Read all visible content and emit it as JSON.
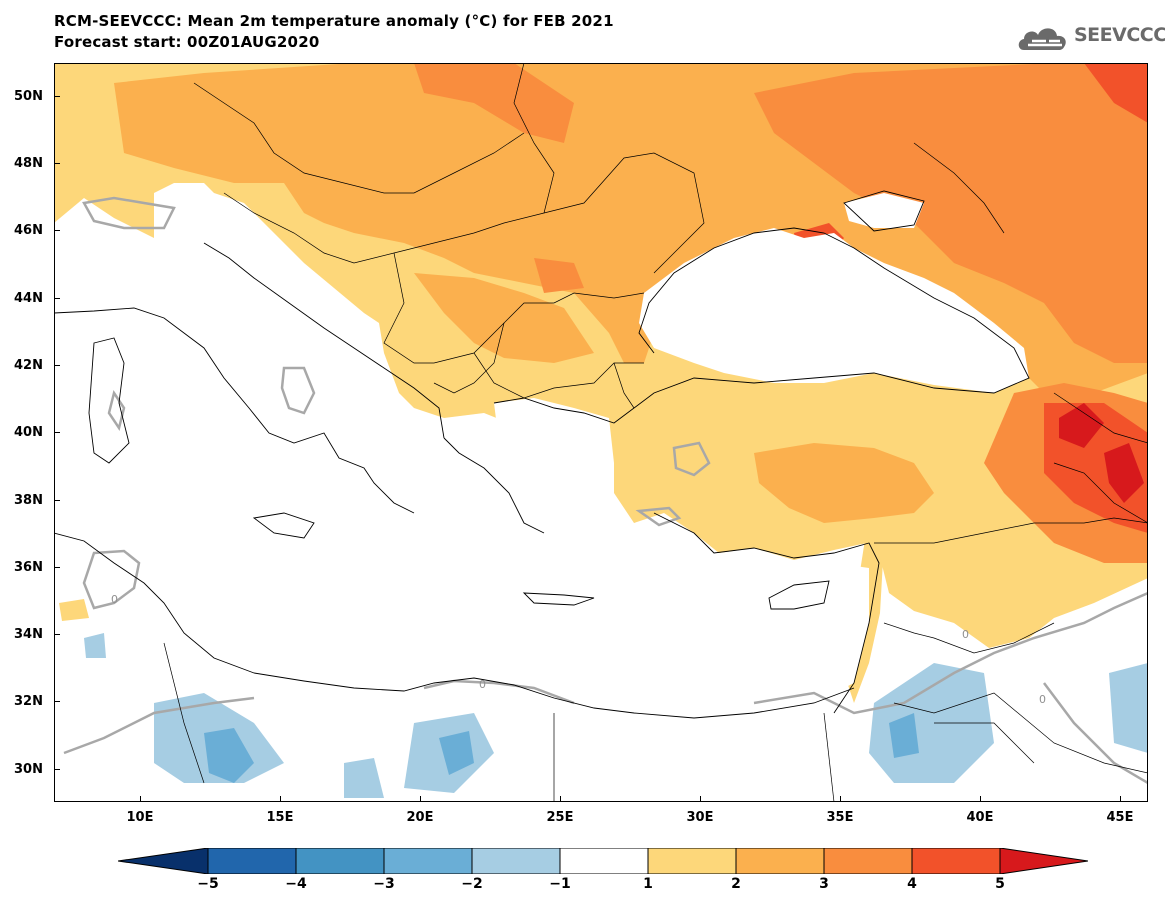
{
  "header": {
    "title_line1": "RCM-SEEVCCC: Mean 2m temperature anomaly (°C) for FEB 2021",
    "title_line2": "Forecast start: 00Z01AUG2020"
  },
  "logo": {
    "text": "SEEVCCC",
    "icon": "cloud-logo-icon"
  },
  "axes": {
    "lat_labels": [
      "50N",
      "48N",
      "46N",
      "44N",
      "42N",
      "40N",
      "38N",
      "36N",
      "34N",
      "32N",
      "30N"
    ],
    "lon_labels": [
      "10E",
      "15E",
      "20E",
      "25E",
      "30E",
      "35E",
      "40E",
      "45E"
    ]
  },
  "contour_label": "0",
  "colorbar": {
    "tick_labels": [
      "−5",
      "−4",
      "−3",
      "−2",
      "−1",
      "1",
      "2",
      "3",
      "4",
      "5"
    ],
    "colors": [
      "#08306b",
      "#2166ac",
      "#4393c3",
      "#6aaed6",
      "#a6cde3",
      "#ffffff",
      "#fdd77a",
      "#fbb04e",
      "#f98d3e",
      "#f2522a",
      "#d7191c"
    ]
  },
  "map_colors": {
    "bin_1_2": "#fdd77a",
    "bin_2_3": "#fbb04e",
    "bin_3_4": "#f98d3e",
    "bin_4_5": "#f2522a",
    "bin_gt5": "#d7191c",
    "bin_m1_m2": "#a6cde3",
    "bin_m2_m3": "#6aaed6",
    "zero_contour": "#a8a8a8"
  }
}
